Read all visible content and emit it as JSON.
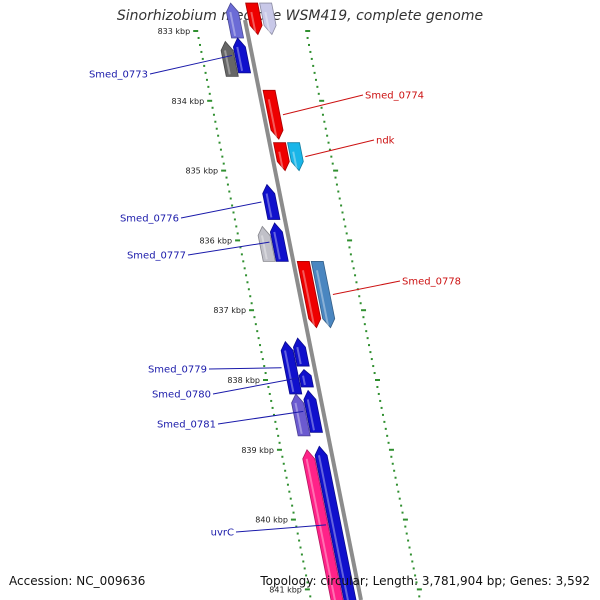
{
  "title": "Sinorhizobium medicae WSM419, complete genome",
  "footer": {
    "accession": "Accession: NC_009636",
    "stats": "Topology: circular; Length: 3,781,904 bp; Genes: 3,592"
  },
  "colors": {
    "backbone": "#8c8c8c",
    "tick": "#2f8f2f",
    "label_forward": "#1a1aaa",
    "label_reverse": "#cc1111"
  },
  "ticks": [
    {
      "kbp": 833,
      "label": "833 kbp"
    },
    {
      "kbp": 834,
      "label": "834 kbp"
    },
    {
      "kbp": 835,
      "label": "835 kbp"
    },
    {
      "kbp": 836,
      "label": "836 kbp"
    },
    {
      "kbp": 837,
      "label": "837 kbp"
    },
    {
      "kbp": 838,
      "label": "838 kbp"
    },
    {
      "kbp": 839,
      "label": "839 kbp"
    },
    {
      "kbp": 840,
      "label": "840 kbp"
    },
    {
      "kbp": 841,
      "label": "841 kbp"
    }
  ],
  "genes": [
    {
      "id": "top-forward-a",
      "label": "",
      "strand": "forward",
      "lane": 1,
      "start": 832.6,
      "end": 833.1,
      "color": "#6b6bd6"
    },
    {
      "id": "top-reverse-a",
      "label": "",
      "strand": "reverse",
      "lane": 1,
      "start": 832.6,
      "end": 833.05,
      "color": "#ee0000"
    },
    {
      "id": "top-reverse-b",
      "label": "",
      "strand": "reverse",
      "lane": 2,
      "start": 832.6,
      "end": 833.05,
      "color": "#c8c8e8"
    },
    {
      "id": "smed-0773-grey",
      "label": "",
      "strand": "forward",
      "lane": 2,
      "start": 833.15,
      "end": 833.65,
      "color": "#666666"
    },
    {
      "id": "smed-0773",
      "label": "Smed_0773",
      "strand": "forward",
      "lane": 1,
      "start": 833.1,
      "end": 833.6,
      "color": "#1010cc"
    },
    {
      "id": "smed-0774",
      "label": "Smed_0774",
      "strand": "reverse",
      "lane": 1,
      "start": 833.85,
      "end": 834.55,
      "color": "#ee0000"
    },
    {
      "id": "ndk-partner",
      "label": "",
      "strand": "reverse",
      "lane": 1,
      "start": 834.6,
      "end": 835.0,
      "color": "#ee0000"
    },
    {
      "id": "ndk",
      "label": "ndk",
      "strand": "reverse",
      "lane": 2,
      "start": 834.6,
      "end": 835.0,
      "color": "#19b5e8"
    },
    {
      "id": "smed-0776",
      "label": "Smed_0776",
      "strand": "forward",
      "lane": 1,
      "start": 835.2,
      "end": 835.7,
      "color": "#1010cc"
    },
    {
      "id": "smed-0777-grey",
      "label": "",
      "strand": "forward",
      "lane": 2,
      "start": 835.8,
      "end": 836.3,
      "color": "#c0c0c8"
    },
    {
      "id": "smed-0777",
      "label": "Smed_0777",
      "strand": "forward",
      "lane": 1,
      "start": 835.75,
      "end": 836.3,
      "color": "#1010cc"
    },
    {
      "id": "smed-0778-red",
      "label": "",
      "strand": "reverse",
      "lane": 1,
      "start": 836.3,
      "end": 837.25,
      "color": "#ee0000"
    },
    {
      "id": "smed-0778",
      "label": "Smed_0778",
      "strand": "reverse",
      "lane": 2,
      "start": 836.3,
      "end": 837.25,
      "color": "#4a86c0"
    },
    {
      "id": "smed-0779-a",
      "label": "Smed_0779",
      "strand": "forward",
      "lane": 2,
      "start": 837.45,
      "end": 838.2,
      "color": "#1010cc"
    },
    {
      "id": "smed-0779-b",
      "label": "",
      "strand": "forward",
      "lane": 1,
      "start": 837.4,
      "end": 837.8,
      "color": "#1010cc"
    },
    {
      "id": "smed-0780",
      "label": "Smed_0780",
      "strand": "forward",
      "lane": 1,
      "start": 837.85,
      "end": 838.1,
      "color": "#1010cc"
    },
    {
      "id": "smed-0781-purple",
      "label": "",
      "strand": "forward",
      "lane": 2,
      "start": 838.2,
      "end": 838.8,
      "color": "#6b5ad0"
    },
    {
      "id": "smed-0781",
      "label": "Smed_0781",
      "strand": "forward",
      "lane": 1,
      "start": 838.15,
      "end": 838.75,
      "color": "#1010cc"
    },
    {
      "id": "pink-gene",
      "label": "",
      "strand": "forward",
      "lane": 2,
      "start": 839.0,
      "end": 841.2,
      "color": "#ff2288"
    },
    {
      "id": "uvrc",
      "label": "uvrC",
      "strand": "forward",
      "lane": 1,
      "start": 838.95,
      "end": 841.2,
      "color": "#1010cc"
    }
  ]
}
